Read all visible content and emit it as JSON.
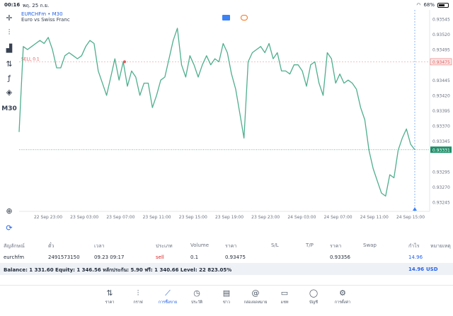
{
  "status_bar": {
    "time": "00:16",
    "date": "พฤ. 25 ก.ย.",
    "battery": "68%",
    "battery_level": 0.68
  },
  "toolbar": {
    "items": [
      {
        "name": "crosshair-icon",
        "glyph": "✛"
      },
      {
        "name": "candles-icon",
        "glyph": "⫶"
      },
      {
        "name": "indicators-icon",
        "glyph": "▟"
      },
      {
        "name": "chart-type-icon",
        "glyph": "⇅"
      },
      {
        "name": "function-icon",
        "glyph": "ƒ"
      },
      {
        "name": "objects-icon",
        "glyph": "◈"
      },
      {
        "name": "timeframe-button",
        "glyph": "M30"
      },
      {
        "name": "zoom-icon",
        "glyph": "⊕"
      },
      {
        "name": "sync-icon",
        "glyph": "⟳"
      }
    ]
  },
  "chart": {
    "symbol": "EURCHFm",
    "timeframe": "M30",
    "symbol_line": "EURCHFm • M30",
    "description": "Euro vs Swiss Franc",
    "order_label": "SELL 0.1",
    "order_price": "0.93475",
    "current_price": "0.93331",
    "colors": {
      "line": "#4fae8e",
      "sell": "#e25a5a",
      "bid": "#1e8f6a",
      "grid": "#eef1f4"
    }
  },
  "chart_data": {
    "type": "line",
    "ylim": [
      0.9323,
      0.9356
    ],
    "y_ticks": [
      "0.93545",
      "0.93520",
      "0.93495",
      "0.93475",
      "0.93445",
      "0.93420",
      "0.93395",
      "0.93370",
      "0.93345",
      "0.93331",
      "0.93295",
      "0.93270",
      "0.93245"
    ],
    "x_labels": [
      "22 Sep 23:00",
      "23 Sep 03:00",
      "23 Sep 07:00",
      "23 Sep 11:00",
      "23 Sep 15:00",
      "23 Sep 19:00",
      "23 Sep 23:00",
      "24 Sep 03:00",
      "24 Sep 07:00",
      "24 Sep 11:00",
      "24 Sep 15:00"
    ],
    "series": [
      {
        "values": [
          0.9336,
          0.935,
          0.93495,
          0.935,
          0.93505,
          0.9351,
          0.93505,
          0.93515,
          0.93495,
          0.93465,
          0.93465,
          0.93485,
          0.9349,
          0.93485,
          0.9348,
          0.93485,
          0.935,
          0.9351,
          0.93505,
          0.9346,
          0.9344,
          0.9342,
          0.9345,
          0.9348,
          0.93445,
          0.93475,
          0.93435,
          0.9346,
          0.9345,
          0.9342,
          0.9344,
          0.9344,
          0.934,
          0.9342,
          0.93445,
          0.9345,
          0.9348,
          0.9351,
          0.9353,
          0.9347,
          0.9345,
          0.93485,
          0.9347,
          0.9345,
          0.9347,
          0.93485,
          0.9347,
          0.9348,
          0.93475,
          0.93505,
          0.9349,
          0.93455,
          0.9343,
          0.9339,
          0.9335,
          0.93475,
          0.9349,
          0.93495,
          0.935,
          0.9349,
          0.93505,
          0.9348,
          0.9349,
          0.9346,
          0.9346,
          0.93455,
          0.9347,
          0.9347,
          0.9346,
          0.93435,
          0.9347,
          0.93475,
          0.9344,
          0.9342,
          0.9349,
          0.9348,
          0.9344,
          0.93455,
          0.9344,
          0.93445,
          0.9344,
          0.9343,
          0.934,
          0.9338,
          0.9333,
          0.933,
          0.9328,
          0.9326,
          0.93255,
          0.9329,
          0.93285,
          0.9333,
          0.9335,
          0.93365,
          0.9334,
          0.93331
        ]
      }
    ]
  },
  "trade_table": {
    "headers": {
      "symbol": "สัญลักษณ์",
      "ticket": "ตั๋ว",
      "time": "เวลา",
      "type": "ประเภท",
      "volume": "Volume",
      "price": "ราคา",
      "sl": "S/L",
      "tp": "T/P",
      "current_price": "ราคา",
      "swap": "Swap",
      "profit": "กำไร",
      "comment": "หมายเหตุ"
    },
    "row": {
      "symbol": "eurchfm",
      "ticket": "2491573150",
      "time": "09.23 09:17",
      "type": "sell",
      "volume": "0.1",
      "price": "0.93475",
      "sl": "",
      "tp": "",
      "current_price": "0.93356",
      "swap": "",
      "profit": "14.96",
      "comment": ""
    },
    "balance_line": "Balance: 1 331.60 Equity: 1 346.56 หลักประกัน: 5.90 ฟรี: 1 340.66 Level: 22 823.05%",
    "total_profit": "14.96",
    "currency": "USD"
  },
  "bottom_nav": {
    "items": [
      {
        "name": "nav-quotes",
        "icon_name": "quotes-icon",
        "glyph": "⇅",
        "label": "ราคา",
        "active": false
      },
      {
        "name": "nav-charts",
        "icon_name": "candles-icon",
        "glyph": "⫶",
        "label": "กราฟ",
        "active": false
      },
      {
        "name": "nav-trade",
        "icon_name": "trade-chart-icon",
        "glyph": "⟋",
        "label": "การซื้อขาย",
        "active": true
      },
      {
        "name": "nav-history",
        "icon_name": "history-icon",
        "glyph": "◷",
        "label": "ประวัติ",
        "active": false
      },
      {
        "name": "nav-news",
        "icon_name": "news-icon",
        "glyph": "▤",
        "label": "ข่าว",
        "active": false
      },
      {
        "name": "nav-mailbox",
        "icon_name": "at-icon",
        "glyph": "@",
        "label": "กล่องจดหมาย",
        "active": false
      },
      {
        "name": "nav-chat",
        "icon_name": "chat-icon",
        "glyph": "▭",
        "label": "แชท",
        "active": false
      },
      {
        "name": "nav-accounts",
        "icon_name": "user-icon",
        "glyph": "◯",
        "label": "บัญชี",
        "active": false
      },
      {
        "name": "nav-settings",
        "icon_name": "gear-icon",
        "glyph": "⚙",
        "label": "การตั้งค่า",
        "active": false
      }
    ]
  }
}
